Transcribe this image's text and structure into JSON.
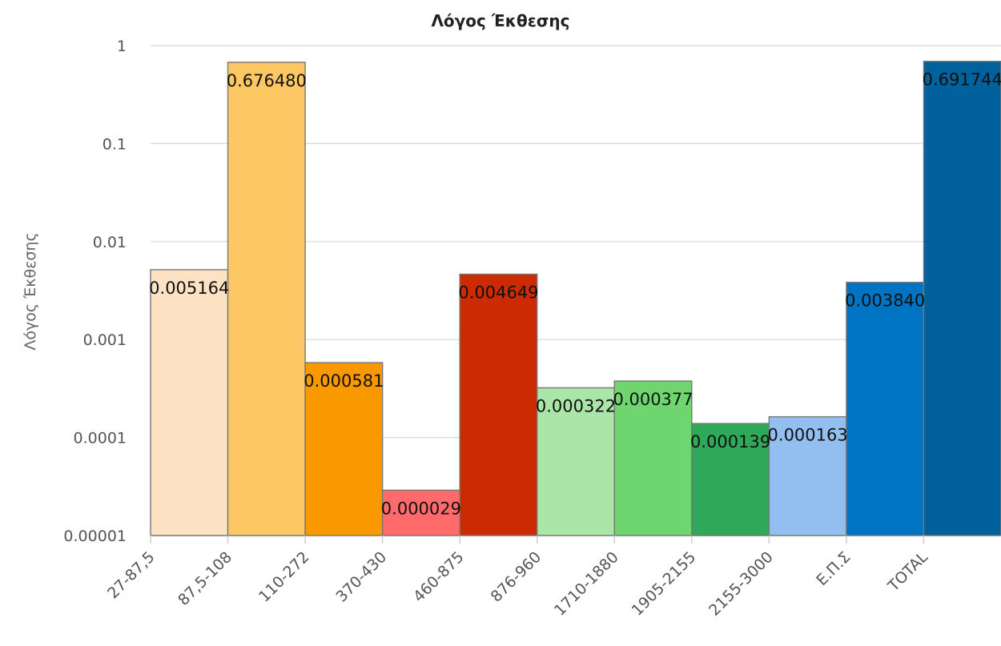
{
  "chart_data": {
    "type": "bar",
    "title": "Λόγος Έκθεσης",
    "ylabel": "Λόγος Έκθεσης",
    "xlabel": "",
    "yscale": "log",
    "ylim": [
      1e-05,
      1
    ],
    "yticks": [
      {
        "value": 1,
        "label": "1"
      },
      {
        "value": 0.1,
        "label": "0.1"
      },
      {
        "value": 0.01,
        "label": "0.01"
      },
      {
        "value": 0.001,
        "label": "0.001"
      },
      {
        "value": 0.0001,
        "label": "0.0001"
      },
      {
        "value": 1e-05,
        "label": "0.00001"
      }
    ],
    "grid": true,
    "categories": [
      "27-87,5",
      "87,5-108",
      "110-272",
      "370-430",
      "460-875",
      "876-960",
      "1710-1880",
      "1905-2155",
      "2155-3000",
      "Ε.Π.Σ",
      "TOTAL"
    ],
    "values": [
      0.005164,
      0.67648,
      0.000581,
      2.9e-05,
      0.004649,
      0.000322,
      0.000377,
      0.000139,
      0.000163,
      0.00384,
      0.691744
    ],
    "value_labels": [
      "0.005164",
      "0.676480",
      "0.000581",
      "0.000029",
      "0.004649",
      "0.000322",
      "0.000377",
      "0.000139",
      "0.000163",
      "0.003840",
      "0.691744"
    ],
    "colors": [
      "#fde3c4",
      "#fdc863",
      "#fa9800",
      "#ff6b6b",
      "#cc2a00",
      "#a9e6a7",
      "#6fd66f",
      "#2fa85a",
      "#92bff0",
      "#0074c2",
      "#00619c"
    ]
  }
}
